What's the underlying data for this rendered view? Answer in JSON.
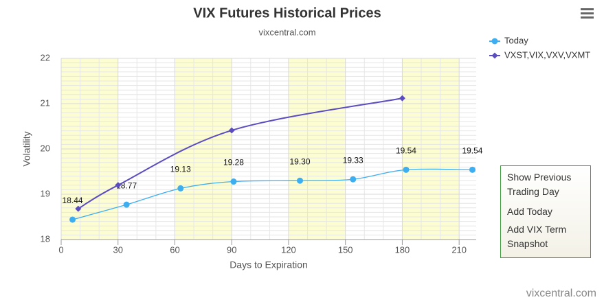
{
  "chart_data": {
    "type": "line",
    "title": "VIX Futures Historical Prices",
    "subtitle": "vixcentral.com",
    "x_label": "Days to Expiration",
    "y_label": "Volatility",
    "xlim": [
      0,
      219
    ],
    "xticks": [
      0,
      30,
      60,
      90,
      120,
      150,
      180,
      210
    ],
    "ylim": [
      18,
      22
    ],
    "yticks": [
      18,
      19,
      20,
      21,
      22
    ],
    "grid": true,
    "plot_bands": [
      [
        0,
        30
      ],
      [
        60,
        90
      ],
      [
        120,
        150
      ],
      [
        180,
        210
      ]
    ],
    "band_color": "#fdfdd2",
    "legend": "top-right",
    "series": [
      {
        "name": "Today",
        "color": "#3daef0",
        "marker": "circle",
        "x": [
          6,
          34.5,
          63,
          91,
          126,
          154,
          182,
          217
        ],
        "values": [
          18.44,
          18.77,
          19.13,
          19.28,
          19.3,
          19.33,
          19.54,
          19.54
        ],
        "value_labels": [
          "18.44",
          "18.77",
          "19.13",
          "19.28",
          "19.30",
          "19.33",
          "19.54",
          "19.54"
        ]
      },
      {
        "name": "VXST,VIX,VXV,VXMT",
        "color": "#5b4cbf",
        "marker": "diamond",
        "x": [
          9,
          30,
          90,
          180
        ],
        "values": [
          18.68,
          19.2,
          20.41,
          21.12
        ]
      }
    ]
  },
  "menu": [
    "Show Previous Trading Day",
    "Add Today",
    "Add VIX Term Snapshot"
  ],
  "credit": "vixcentral.com"
}
